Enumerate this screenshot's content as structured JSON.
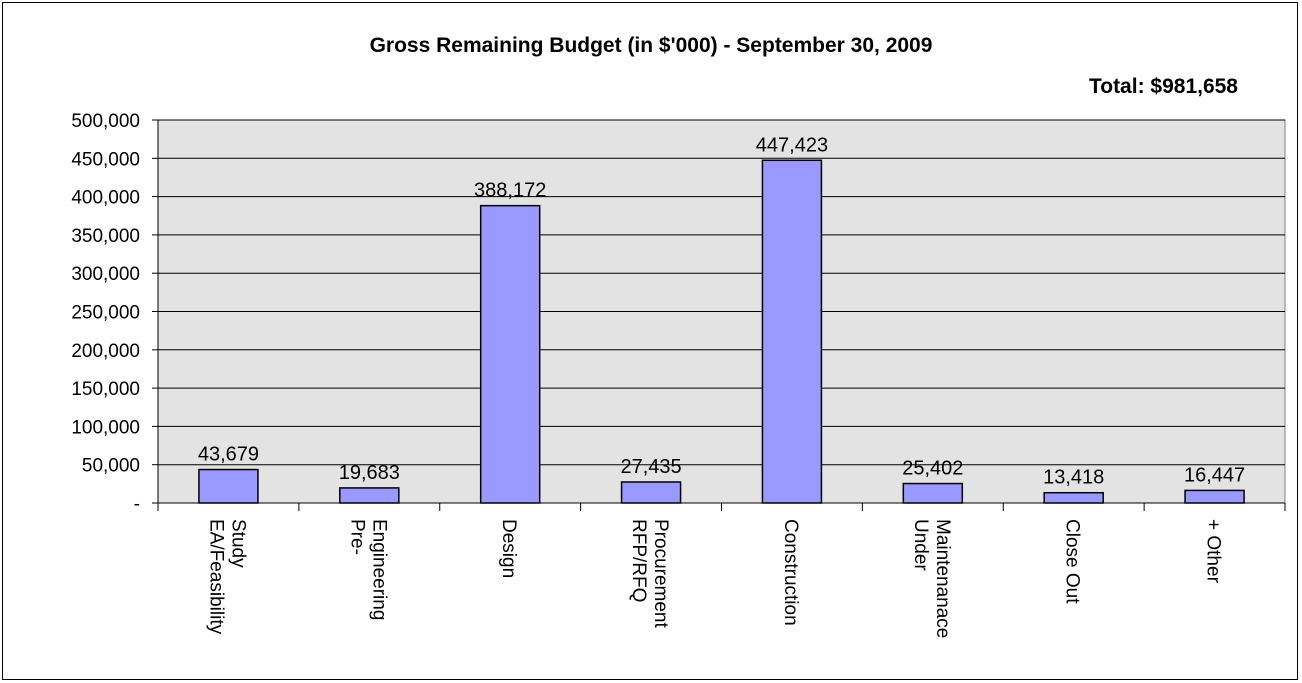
{
  "chart_data": {
    "type": "bar",
    "title": "Gross Remaining Budget (in $'000) - September 30, 2009",
    "subtitle": "Total: $981,658",
    "categories": [
      [
        "EA/Feasibility",
        "Study"
      ],
      [
        "Pre-",
        "Engineering"
      ],
      [
        "Design"
      ],
      [
        "RFP/RFQ",
        "Procurement"
      ],
      [
        "Construction"
      ],
      [
        "Under",
        "Maintenanace"
      ],
      [
        "Close Out"
      ],
      [
        "+ Other"
      ]
    ],
    "values": [
      43679,
      19683,
      388172,
      27435,
      447423,
      25402,
      13418,
      16447
    ],
    "data_labels": [
      "43,679",
      "19,683",
      "388,172",
      "27,435",
      "447,423",
      "25,402",
      "13,418",
      "16,447"
    ],
    "ylim": [
      0,
      500000
    ],
    "yticks": [
      0,
      50000,
      100000,
      150000,
      200000,
      250000,
      300000,
      350000,
      400000,
      450000,
      500000
    ],
    "ytick_labels": [
      "-",
      "50,000",
      "100,000",
      "150,000",
      "200,000",
      "250,000",
      "300,000",
      "350,000",
      "400,000",
      "450,000",
      "500,000"
    ],
    "xlabel": "",
    "ylabel": "",
    "grid": true,
    "legend": "none",
    "colors": {
      "bar_fill": "#9999FF",
      "bar_stroke": "#000000",
      "plot_bg": "#E3E3E3",
      "grid": "#000000"
    }
  }
}
